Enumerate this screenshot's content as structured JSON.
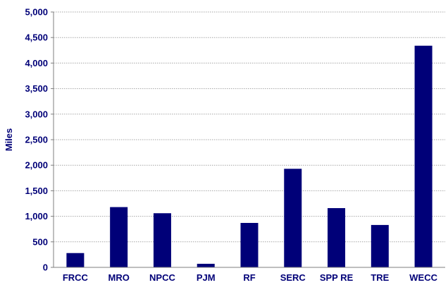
{
  "colors": {
    "bar": "#000078",
    "text": "#000078",
    "grid": "#a6a6a6",
    "axis": "#7f7f7f"
  },
  "chart_data": {
    "type": "bar",
    "title": "",
    "xlabel": "",
    "ylabel": "Miles",
    "ylim": [
      0,
      5000
    ],
    "ytick_step": 500,
    "grid": true,
    "grid_style": "dotted",
    "legend": "none",
    "categories": [
      "FRCC",
      "MRO",
      "NPCC",
      "PJM",
      "RF",
      "SERC",
      "SPP RE",
      "TRE",
      "WECC"
    ],
    "values": [
      280,
      1180,
      1060,
      70,
      870,
      1930,
      1160,
      830,
      4340
    ]
  }
}
